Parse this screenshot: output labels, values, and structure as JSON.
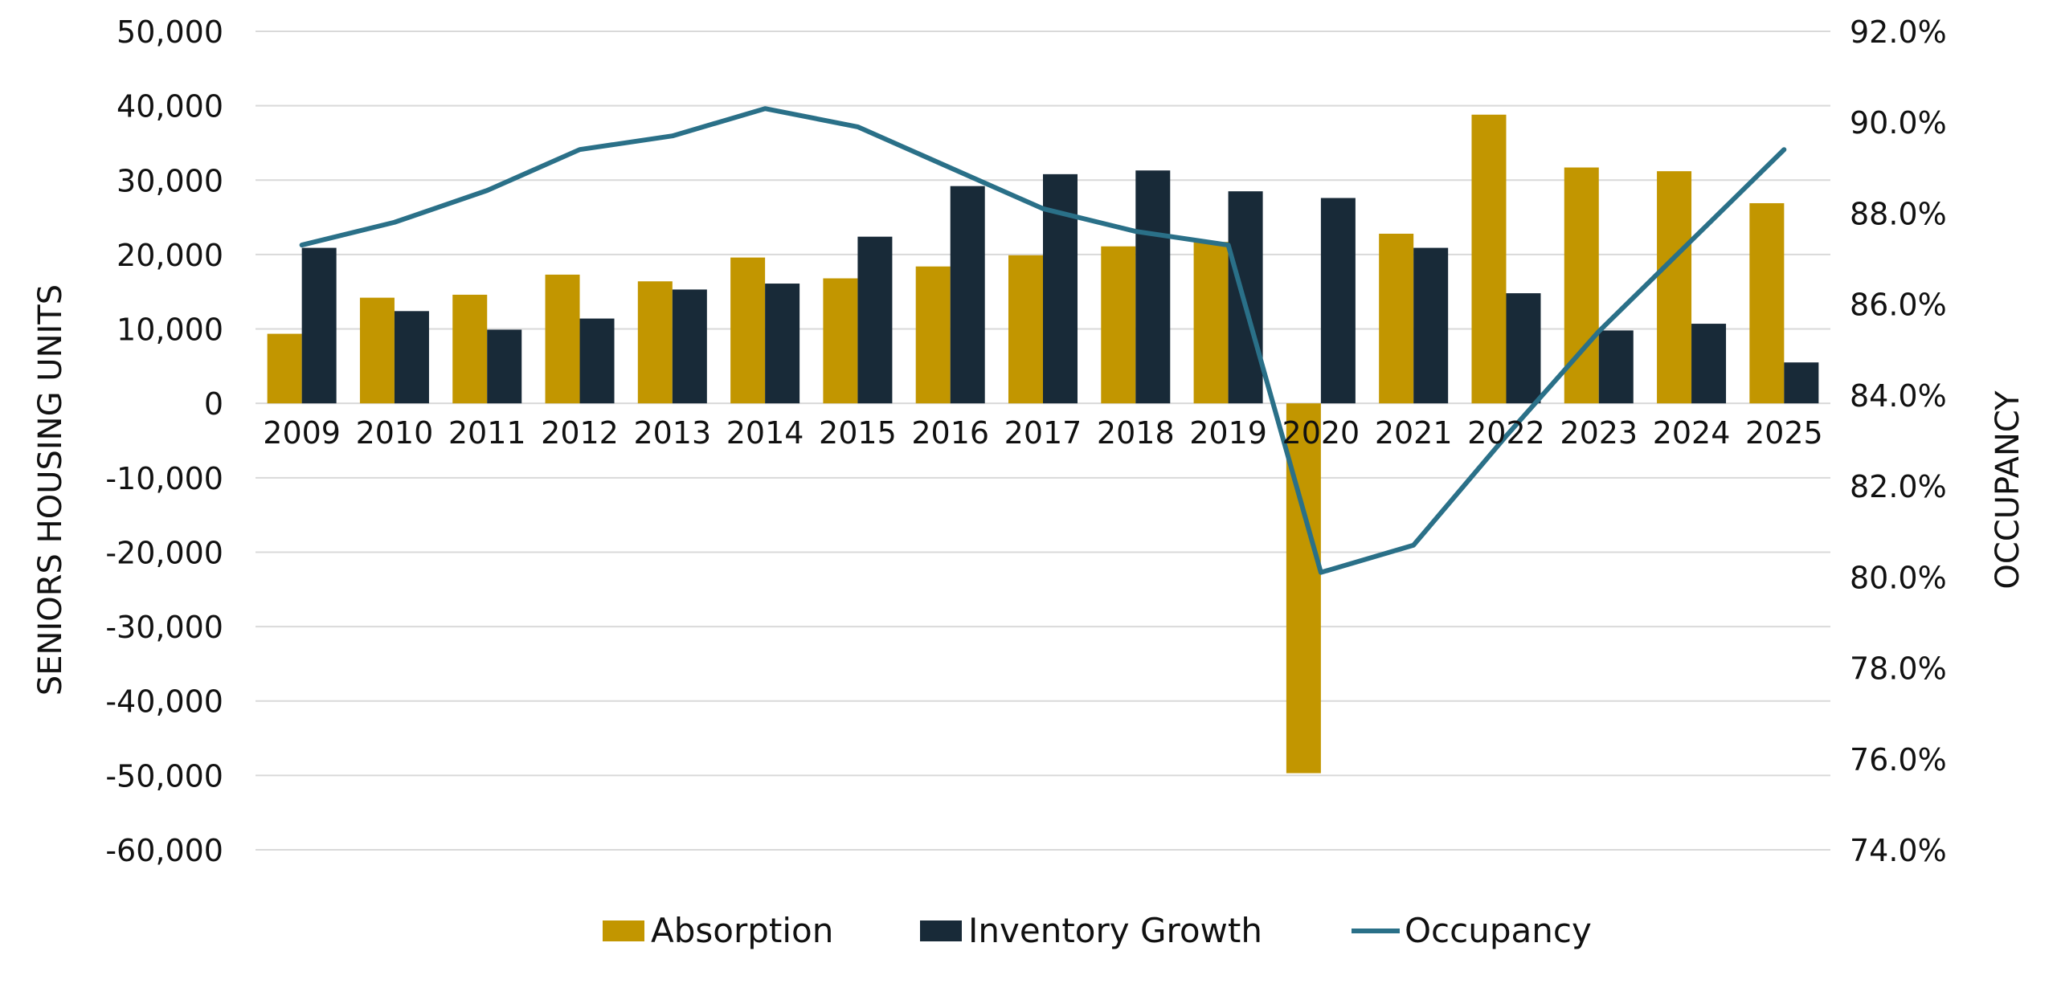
{
  "chart_data": {
    "type": "bar",
    "categories": [
      "2009",
      "2010",
      "2011",
      "2012",
      "2013",
      "2014",
      "2015",
      "2016",
      "2017",
      "2018",
      "2019",
      "2020",
      "2021",
      "2022",
      "2023",
      "2024",
      "2025"
    ],
    "series": [
      {
        "name": "Absorption",
        "type": "bar",
        "axis": "left",
        "color": "#C29600",
        "values": [
          9350,
          14200,
          14600,
          17300,
          16400,
          19600,
          16800,
          18400,
          19900,
          21100,
          21700,
          -49700,
          22800,
          38800,
          31700,
          31200,
          26900
        ]
      },
      {
        "name": "Inventory Growth",
        "type": "bar",
        "axis": "left",
        "color": "#182A38",
        "values": [
          20900,
          12400,
          9900,
          11400,
          15300,
          16100,
          22400,
          29200,
          30800,
          31300,
          28500,
          27600,
          20900,
          14800,
          9800,
          10700,
          5500
        ]
      },
      {
        "name": "Occupancy",
        "type": "line",
        "axis": "right",
        "color": "#2A7088",
        "values": [
          87.3,
          87.8,
          88.5,
          89.4,
          89.7,
          90.3,
          89.9,
          89.0,
          88.1,
          87.6,
          87.3,
          80.1,
          80.7,
          83.1,
          85.4,
          87.4,
          89.4
        ]
      }
    ],
    "ylabel": "SENIORS HOUSING UNITS",
    "y2label": "OCCUPANCY",
    "ylim": [
      -60000,
      50000
    ],
    "y2lim": [
      74.0,
      92.0
    ],
    "yticks": [
      "50,000",
      "40,000",
      "30,000",
      "20,000",
      "10,000",
      "0",
      "-10,000",
      "-20,000",
      "-30,000",
      "-40,000",
      "-50,000",
      "-60,000"
    ],
    "y2ticks": [
      "92.0%",
      "90.0%",
      "88.0%",
      "86.0%",
      "84.0%",
      "82.0%",
      "80.0%",
      "78.0%",
      "76.0%",
      "74.0%"
    ],
    "grid": true,
    "legend": "bottom"
  }
}
